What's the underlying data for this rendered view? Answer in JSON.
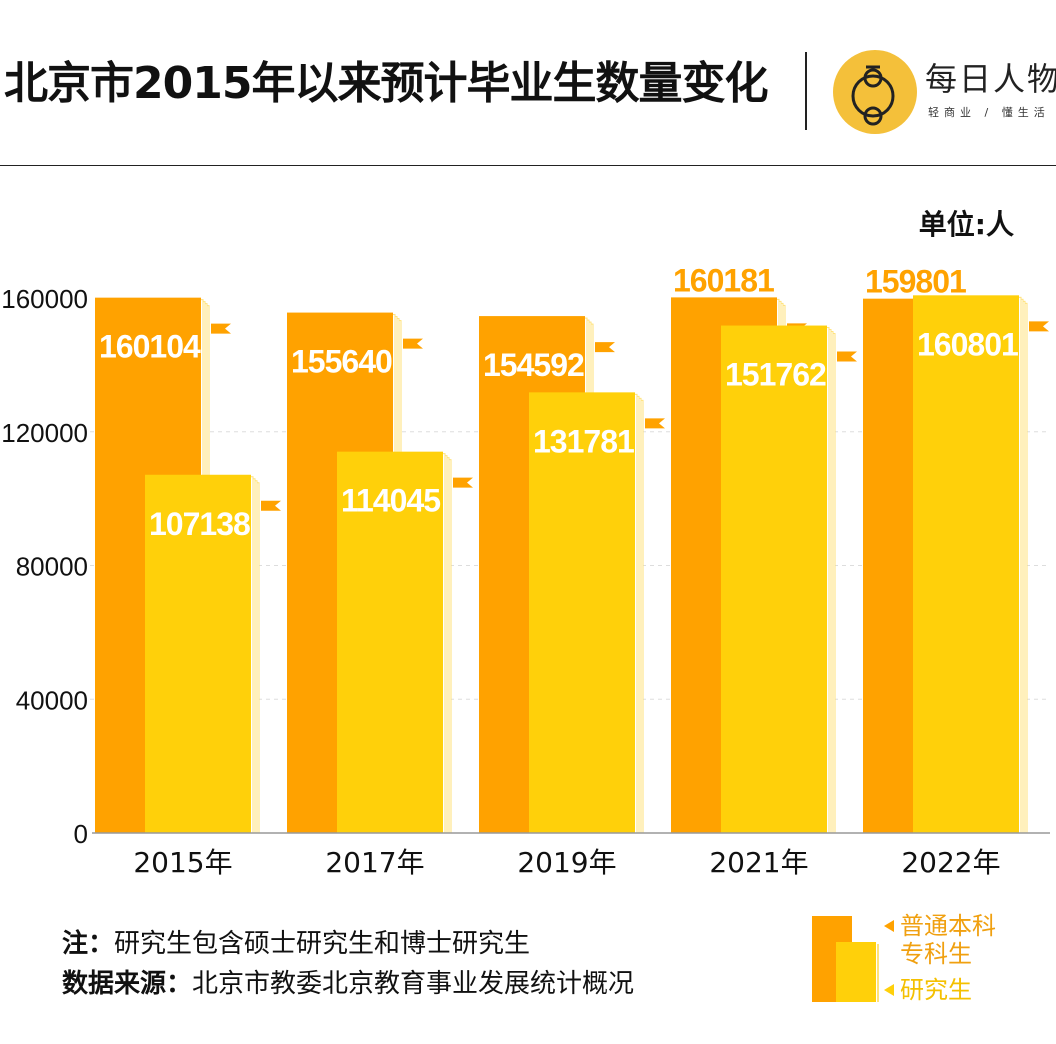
{
  "header": {
    "title": "北京市2015年以来预计毕业生数量变化",
    "brand": "每日人物",
    "slogan": "轻商业 / 懂生活"
  },
  "colors": {
    "undergrad": "#ffa200",
    "graduate": "#ffd00a"
  },
  "chart_data": {
    "type": "bar",
    "title": "北京市2015年以来预计毕业生数量变化",
    "unit": "单位:人",
    "categories": [
      "2015年",
      "2017年",
      "2019年",
      "2021年",
      "2022年"
    ],
    "series": [
      {
        "name": "普通本科专科生",
        "values": [
          160104,
          155640,
          154592,
          160181,
          159801
        ]
      },
      {
        "name": "研究生",
        "values": [
          107138,
          114045,
          131781,
          151762,
          160801
        ]
      }
    ],
    "yticks": [
      0,
      40000,
      80000,
      120000,
      160000
    ],
    "ylim": [
      0,
      160000
    ],
    "grid": true,
    "legend": "bottom-right"
  },
  "legend": {
    "undergrad_line1": "普通本科",
    "undergrad_line2": "专科生",
    "graduate": "研究生"
  },
  "notes": {
    "note_label": "注：",
    "note_text": "研究生包含硕士研究生和博士研究生",
    "source_label": "数据来源：",
    "source_text": "北京市教委北京教育事业发展统计概况"
  }
}
